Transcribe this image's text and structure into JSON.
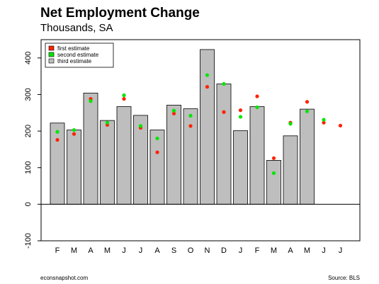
{
  "chart_data": {
    "type": "bar",
    "title": "Net Employment Change",
    "subtitle": "Thousands, SA",
    "categories": [
      "F",
      "M",
      "A",
      "M",
      "J",
      "J",
      "A",
      "S",
      "O",
      "N",
      "D",
      "J",
      "F",
      "M",
      "A",
      "M",
      "J",
      "J"
    ],
    "ylim": [
      -100,
      450
    ],
    "yticks": [
      -100,
      0,
      100,
      200,
      300,
      400
    ],
    "grid": false,
    "legend_position": "top-left",
    "series": [
      {
        "name": "third estimate",
        "kind": "bar",
        "color": "#bebebe",
        "values": [
          222,
          203,
          304,
          229,
          267,
          243,
          203,
          271,
          261,
          423,
          329,
          201,
          267,
          120,
          187,
          260,
          null,
          null
        ]
      },
      {
        "name": "first estimate",
        "kind": "point",
        "color": "#ff2200",
        "values": [
          176,
          192,
          288,
          217,
          288,
          209,
          142,
          248,
          214,
          321,
          252,
          257,
          295,
          126,
          223,
          280,
          223,
          215
        ]
      },
      {
        "name": "second estimate",
        "kind": "point",
        "color": "#00e600",
        "values": [
          198,
          203,
          282,
          223,
          298,
          214,
          180,
          256,
          242,
          353,
          329,
          239,
          265,
          85,
          220,
          254,
          231,
          null
        ]
      }
    ],
    "source": "Source: BLS",
    "credit": "econsnapshot.com"
  }
}
